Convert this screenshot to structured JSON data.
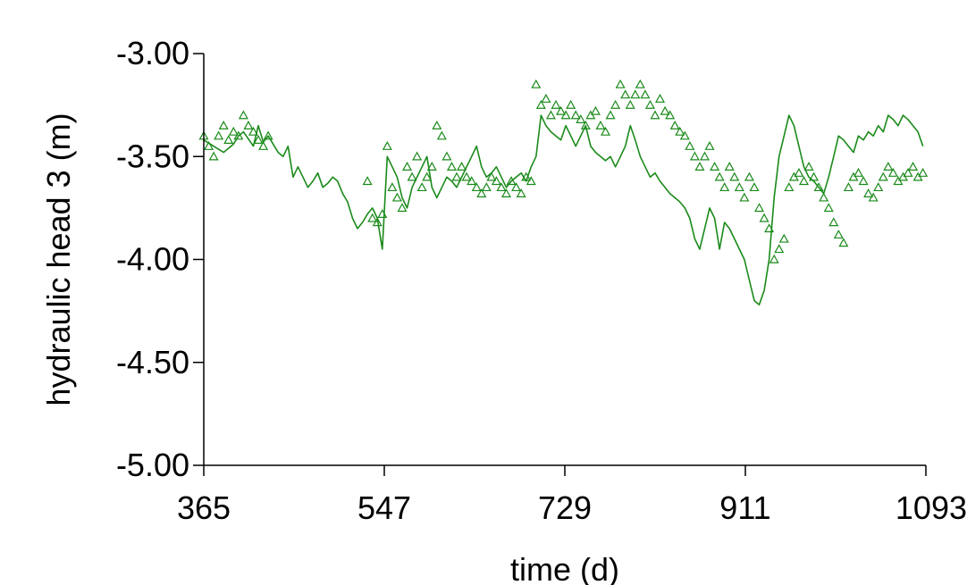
{
  "chart_data": {
    "type": "line",
    "title": "",
    "xlabel": "time (d)",
    "ylabel": "hydraulic head 3 (m)",
    "xlim": [
      365,
      1093
    ],
    "ylim": [
      -5.0,
      -3.0
    ],
    "x_ticks": [
      365,
      547,
      729,
      911,
      1093
    ],
    "x_tick_labels": [
      "365",
      "547",
      "729",
      "911",
      "1093"
    ],
    "y_ticks": [
      -3.0,
      -3.5,
      -4.0,
      -4.5,
      -5.0
    ],
    "y_tick_labels": [
      "-3.00",
      "-3.50",
      "-4.00",
      "-4.50",
      "-5.00"
    ],
    "grid": false,
    "legend": "none",
    "colors": {
      "series": "#1a8a1a",
      "axis": "#000000"
    },
    "series": [
      {
        "style": "line",
        "x": [
          365,
          375,
          385,
          395,
          400,
          405,
          415,
          420,
          425,
          430,
          440,
          445,
          450,
          455,
          460,
          465,
          470,
          475,
          480,
          485,
          490,
          495,
          500,
          505,
          510,
          515,
          520,
          525,
          530,
          535,
          540,
          545,
          550,
          555,
          560,
          565,
          570,
          575,
          580,
          585,
          590,
          595,
          600,
          605,
          610,
          615,
          620,
          625,
          630,
          635,
          640,
          645,
          650,
          655,
          660,
          665,
          670,
          675,
          680,
          685,
          690,
          695,
          700,
          705,
          710,
          715,
          720,
          725,
          730,
          735,
          740,
          745,
          750,
          755,
          760,
          765,
          770,
          775,
          780,
          785,
          790,
          795,
          800,
          805,
          810,
          815,
          820,
          825,
          830,
          835,
          840,
          845,
          850,
          855,
          860,
          865,
          870,
          875,
          880,
          885,
          890,
          895,
          900,
          905,
          910,
          915,
          920,
          925,
          930,
          935,
          940,
          945,
          950,
          955,
          960,
          965,
          970,
          975,
          980,
          985,
          990,
          995,
          1000,
          1005,
          1010,
          1015,
          1020,
          1025,
          1030,
          1035,
          1040,
          1045,
          1050,
          1055,
          1060,
          1065,
          1070,
          1075,
          1080,
          1085,
          1090
        ],
        "y": [
          -3.42,
          -3.45,
          -3.48,
          -3.44,
          -3.4,
          -3.38,
          -3.45,
          -3.35,
          -3.43,
          -3.4,
          -3.48,
          -3.5,
          -3.45,
          -3.6,
          -3.55,
          -3.6,
          -3.65,
          -3.62,
          -3.58,
          -3.65,
          -3.63,
          -3.6,
          -3.62,
          -3.68,
          -3.72,
          -3.8,
          -3.85,
          -3.82,
          -3.78,
          -3.75,
          -3.8,
          -3.95,
          -3.5,
          -3.55,
          -3.6,
          -3.7,
          -3.75,
          -3.65,
          -3.6,
          -3.55,
          -3.5,
          -3.65,
          -3.7,
          -3.65,
          -3.6,
          -3.62,
          -3.65,
          -3.6,
          -3.55,
          -3.5,
          -3.45,
          -3.55,
          -3.6,
          -3.58,
          -3.55,
          -3.6,
          -3.65,
          -3.62,
          -3.6,
          -3.58,
          -3.62,
          -3.55,
          -3.5,
          -3.3,
          -3.35,
          -3.38,
          -3.4,
          -3.42,
          -3.35,
          -3.4,
          -3.45,
          -3.4,
          -3.35,
          -3.45,
          -3.48,
          -3.5,
          -3.52,
          -3.5,
          -3.55,
          -3.5,
          -3.45,
          -3.35,
          -3.42,
          -3.5,
          -3.55,
          -3.6,
          -3.58,
          -3.62,
          -3.65,
          -3.68,
          -3.7,
          -3.72,
          -3.75,
          -3.8,
          -3.9,
          -3.95,
          -3.85,
          -3.75,
          -3.8,
          -3.95,
          -3.82,
          -3.85,
          -3.9,
          -3.95,
          -4.0,
          -4.1,
          -4.2,
          -4.22,
          -4.15,
          -4.0,
          -3.7,
          -3.5,
          -3.4,
          -3.3,
          -3.35,
          -3.45,
          -3.55,
          -3.6,
          -3.62,
          -3.65,
          -3.68,
          -3.6,
          -3.5,
          -3.4,
          -3.42,
          -3.45,
          -3.48,
          -3.4,
          -3.42,
          -3.38,
          -3.4,
          -3.35,
          -3.38,
          -3.3,
          -3.32,
          -3.35,
          -3.3,
          -3.32,
          -3.35,
          -3.38,
          -3.45
        ]
      },
      {
        "style": "triangles",
        "x": [
          365,
          370,
          375,
          380,
          385,
          390,
          395,
          400,
          405,
          410,
          415,
          420,
          425,
          430,
          530,
          535,
          540,
          545,
          550,
          555,
          560,
          565,
          570,
          575,
          580,
          585,
          590,
          595,
          600,
          605,
          610,
          615,
          620,
          625,
          630,
          635,
          640,
          645,
          650,
          655,
          660,
          665,
          670,
          675,
          680,
          685,
          690,
          695,
          700,
          705,
          710,
          715,
          720,
          725,
          730,
          735,
          740,
          745,
          750,
          755,
          760,
          765,
          770,
          775,
          780,
          785,
          790,
          795,
          800,
          805,
          810,
          815,
          820,
          825,
          830,
          835,
          840,
          845,
          850,
          855,
          860,
          865,
          870,
          875,
          880,
          885,
          890,
          895,
          900,
          905,
          910,
          915,
          920,
          925,
          930,
          935,
          940,
          945,
          950,
          955,
          960,
          965,
          970,
          975,
          980,
          985,
          990,
          995,
          1000,
          1005,
          1010,
          1015,
          1020,
          1025,
          1030,
          1035,
          1040,
          1045,
          1050,
          1055,
          1060,
          1065,
          1070,
          1075,
          1080,
          1085,
          1090
        ],
        "y": [
          -3.4,
          -3.45,
          -3.5,
          -3.4,
          -3.35,
          -3.42,
          -3.38,
          -3.4,
          -3.3,
          -3.35,
          -3.38,
          -3.42,
          -3.45,
          -3.4,
          -3.62,
          -3.8,
          -3.82,
          -3.78,
          -3.45,
          -3.65,
          -3.7,
          -3.75,
          -3.55,
          -3.6,
          -3.5,
          -3.65,
          -3.6,
          -3.55,
          -3.35,
          -3.4,
          -3.5,
          -3.55,
          -3.6,
          -3.55,
          -3.6,
          -3.62,
          -3.65,
          -3.68,
          -3.65,
          -3.6,
          -3.62,
          -3.65,
          -3.68,
          -3.62,
          -3.65,
          -3.68,
          -3.6,
          -3.62,
          -3.15,
          -3.25,
          -3.22,
          -3.3,
          -3.25,
          -3.28,
          -3.3,
          -3.25,
          -3.3,
          -3.32,
          -3.35,
          -3.3,
          -3.28,
          -3.35,
          -3.38,
          -3.3,
          -3.25,
          -3.15,
          -3.2,
          -3.25,
          -3.2,
          -3.15,
          -3.2,
          -3.25,
          -3.3,
          -3.22,
          -3.28,
          -3.3,
          -3.35,
          -3.38,
          -3.4,
          -3.45,
          -3.5,
          -3.55,
          -3.5,
          -3.45,
          -3.55,
          -3.6,
          -3.65,
          -3.55,
          -3.6,
          -3.65,
          -3.7,
          -3.6,
          -3.65,
          -3.75,
          -3.8,
          -3.85,
          -4.0,
          -3.95,
          -3.9,
          -3.65,
          -3.6,
          -3.58,
          -3.62,
          -3.55,
          -3.6,
          -3.65,
          -3.7,
          -3.75,
          -3.82,
          -3.88,
          -3.92,
          -3.65,
          -3.6,
          -3.58,
          -3.62,
          -3.68,
          -3.7,
          -3.65,
          -3.6,
          -3.55,
          -3.58,
          -3.62,
          -3.6,
          -3.58,
          -3.55,
          -3.6,
          -3.58
        ]
      }
    ]
  }
}
